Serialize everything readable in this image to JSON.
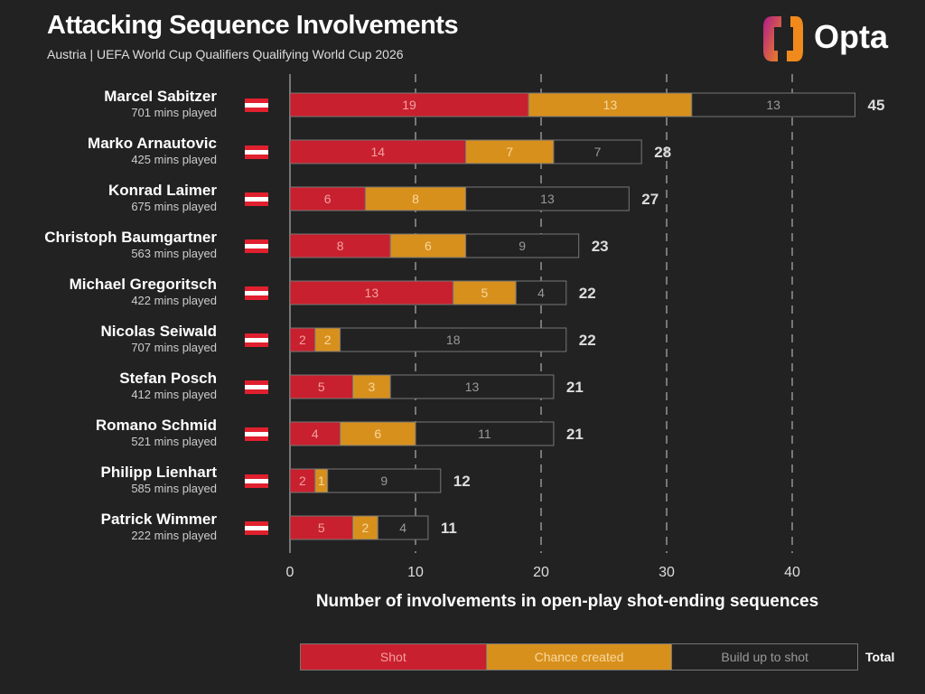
{
  "header": {
    "title": "Attacking Sequence Involvements",
    "subtitle": "Austria | UEFA World Cup Qualifiers Qualifying World Cup 2026",
    "logo_text": "Opta"
  },
  "chart_data": {
    "type": "bar",
    "orientation": "horizontal",
    "stacked": true,
    "xlabel": "Number of involvements in open-play shot-ending sequences",
    "xlim": [
      0,
      45
    ],
    "xticks": [
      0,
      10,
      20,
      30,
      40
    ],
    "grid": "vertical dashed",
    "legend_position": "bottom",
    "players": [
      {
        "name": "Marcel Sabitzer",
        "mins": "701 mins played",
        "flag": "austria"
      },
      {
        "name": "Marko Arnautovic",
        "mins": "425 mins played",
        "flag": "austria"
      },
      {
        "name": "Konrad Laimer",
        "mins": "675 mins played",
        "flag": "austria"
      },
      {
        "name": "Christoph Baumgartner",
        "mins": "563 mins played",
        "flag": "austria"
      },
      {
        "name": "Michael Gregoritsch",
        "mins": "422 mins played",
        "flag": "austria"
      },
      {
        "name": "Nicolas Seiwald",
        "mins": "707 mins played",
        "flag": "austria"
      },
      {
        "name": "Stefan Posch",
        "mins": "412 mins played",
        "flag": "austria"
      },
      {
        "name": "Romano Schmid",
        "mins": "521 mins played",
        "flag": "austria"
      },
      {
        "name": "Philipp Lienhart",
        "mins": "585 mins played",
        "flag": "austria"
      },
      {
        "name": "Patrick Wimmer",
        "mins": "222 mins played",
        "flag": "austria"
      }
    ],
    "series": [
      {
        "name": "Shot",
        "color": "#c8202e",
        "values": [
          19,
          14,
          6,
          8,
          13,
          2,
          5,
          4,
          2,
          5
        ]
      },
      {
        "name": "Chance created",
        "color": "#d8901c",
        "values": [
          13,
          7,
          8,
          6,
          5,
          2,
          3,
          6,
          1,
          2
        ]
      },
      {
        "name": "Build up to shot",
        "color": "#222222",
        "values": [
          13,
          7,
          13,
          9,
          4,
          18,
          13,
          11,
          9,
          4
        ]
      }
    ],
    "totals": [
      45,
      28,
      27,
      23,
      22,
      22,
      21,
      21,
      12,
      11
    ],
    "total_label": "Total"
  }
}
